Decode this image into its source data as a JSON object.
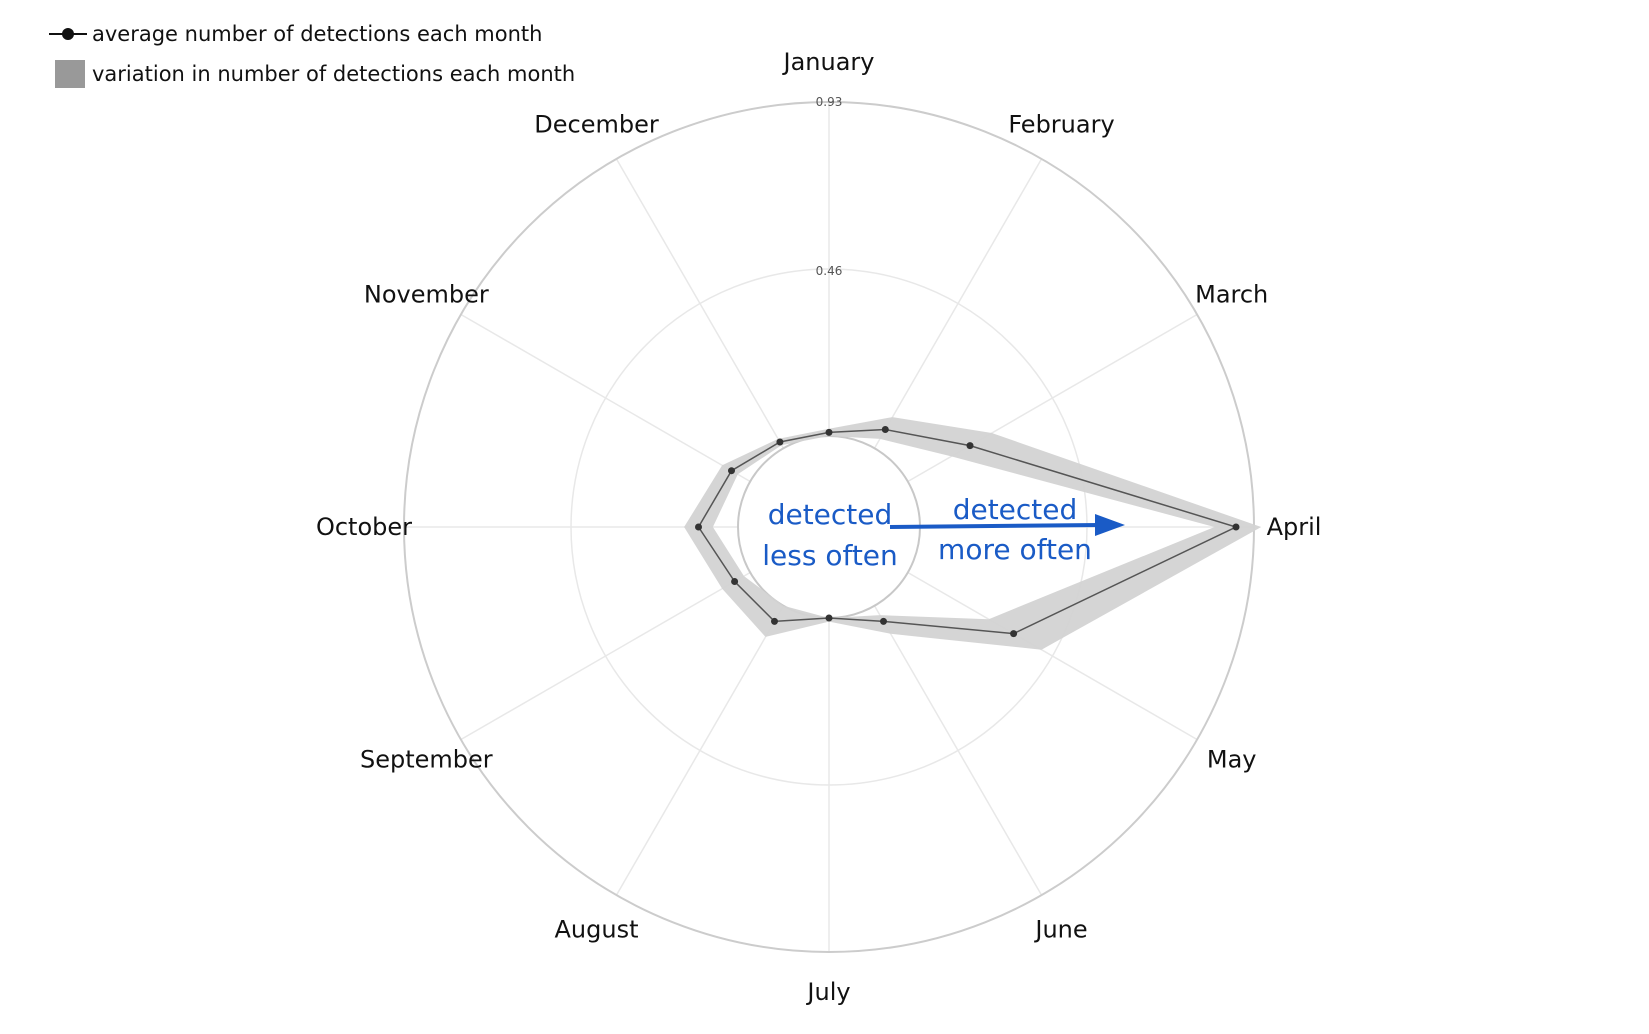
{
  "chart_data": {
    "type": "radar",
    "categories": [
      "January",
      "February",
      "March",
      "April",
      "May",
      "June",
      "July",
      "August",
      "September",
      "October",
      "November",
      "December"
    ],
    "series": [
      {
        "name": "average number of detections each month",
        "values": [
          0.01,
          0.06,
          0.2,
          0.88,
          0.34,
          0.05,
          0.0,
          0.05,
          0.05,
          0.11,
          0.06,
          0.02
        ]
      }
    ],
    "band": {
      "name": "variation in number of detections each month",
      "lower": [
        0.0,
        0.03,
        0.14,
        0.82,
        0.26,
        0.03,
        0.0,
        0.0,
        0.02,
        0.07,
        0.04,
        0.01
      ],
      "upper": [
        0.02,
        0.1,
        0.27,
        0.95,
        0.43,
        0.09,
        0.01,
        0.1,
        0.09,
        0.15,
        0.09,
        0.03
      ]
    },
    "radial_ticks": [
      "0.46",
      "0.93"
    ],
    "rlim": [
      0,
      0.93
    ],
    "grid": true,
    "legend_position": "top-left",
    "colors": {
      "line": "#555555",
      "marker": "#333333",
      "band": "#d3d3d3",
      "legend_band": "#999999",
      "grid": "#e8e8e8",
      "outer_ring": "#cccccc",
      "annotation": "#1a5bc6"
    },
    "annotations": {
      "inner_line1": "detected",
      "inner_line2": "less often",
      "outer_line1": "detected",
      "outer_line2": "more often"
    }
  }
}
